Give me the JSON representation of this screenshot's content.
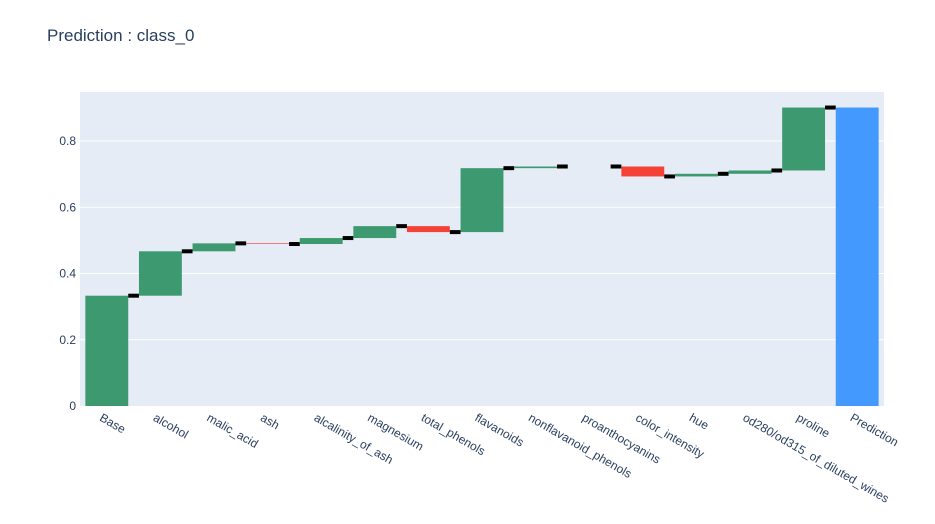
{
  "title": "Prediction : class_0",
  "colors": {
    "increasing": "#3d9970",
    "decreasing": "#f44336",
    "total": "#4499ff",
    "connector": "#000000",
    "plot_bg": "#e5ecf6",
    "grid": "#ffffff",
    "text": "#2a3f5f"
  },
  "chart_data": {
    "type": "waterfall",
    "title": "Prediction : class_0",
    "xlabel": "",
    "ylabel": "",
    "ylim": [
      0,
      0.94
    ],
    "grid": true,
    "legend": "none",
    "yticks": [
      0,
      0.2,
      0.4,
      0.6,
      0.8
    ],
    "ytick_labels": [
      "0",
      "0.2",
      "0.4",
      "0.6",
      "0.8"
    ],
    "categories": [
      "Base",
      "alcohol",
      "malic_acid",
      "ash",
      "alcalinity_of_ash",
      "magnesium",
      "total_phenols",
      "flavanoids",
      "nonflavanoid_phenols",
      "proanthocyanins",
      "color_intensity",
      "hue",
      "od280/od315_of_diluted_wines",
      "proline",
      "Prediction"
    ],
    "measure": [
      "absolute",
      "relative",
      "relative",
      "relative",
      "relative",
      "relative",
      "relative",
      "relative",
      "relative",
      "relative",
      "relative",
      "relative",
      "relative",
      "relative",
      "total"
    ],
    "values": [
      0.333,
      0.134,
      0.024,
      -0.002,
      0.018,
      0.036,
      -0.018,
      0.193,
      0.005,
      0.0,
      -0.03,
      0.008,
      0.01,
      0.19,
      0.901
    ],
    "cumulative": [
      0.333,
      0.467,
      0.491,
      0.489,
      0.507,
      0.543,
      0.525,
      0.718,
      0.723,
      0.723,
      0.693,
      0.701,
      0.711,
      0.901,
      0.901
    ]
  }
}
